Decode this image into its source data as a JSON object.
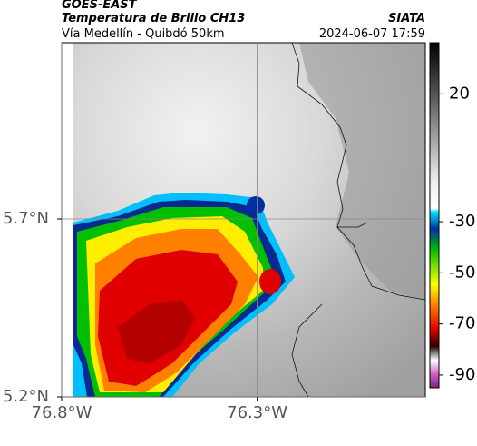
{
  "header": {
    "source": "GOES-EAST",
    "product": "Temperatura de Brillo CH13",
    "agency": "SIATA",
    "region": "Vía Medellín - Quibdó 50km",
    "timestamp": "2024-06-07 17:59"
  },
  "map": {
    "xlim": [
      -76.8,
      -75.87
    ],
    "ylim": [
      5.2,
      6.195
    ],
    "xticks": [
      {
        "value": -76.8,
        "label": "76.8°W"
      },
      {
        "value": -76.3,
        "label": "76.3°W"
      }
    ],
    "yticks": [
      {
        "value": 5.7,
        "label": "5.7°N"
      },
      {
        "value": 5.2,
        "label": "5.2°N"
      }
    ],
    "grid": true
  },
  "colorbar": {
    "lim": [
      -95,
      40
    ],
    "ticks": [
      20,
      -30,
      -50,
      -70,
      -90
    ]
  }
}
